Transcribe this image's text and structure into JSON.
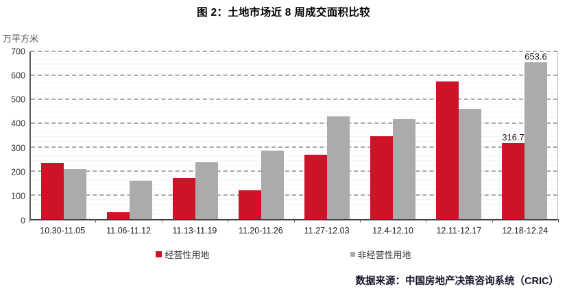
{
  "header": {
    "title": "图 2：土地市场近 8 周成交面积比较"
  },
  "footer": {
    "source_text": "数据来源：中国房地产决策咨询系统（CRIC）"
  },
  "colors": {
    "series_operating": "#ce1228",
    "series_non_operating": "#ababab",
    "gridline": "#ababab",
    "axis": "#595959"
  },
  "chart_data": {
    "type": "bar",
    "title": "图 2：土地市场近 8 周成交面积比较",
    "ylabel": "万平方米",
    "xlabel": "",
    "ylim": [
      0,
      700
    ],
    "y_ticks": [
      0,
      100,
      200,
      300,
      400,
      500,
      600,
      700
    ],
    "grid": "dashed horizontal major, faint minor every 20",
    "legend_position": "bottom",
    "categories": [
      "10.30-11.05",
      "11.06-11.12",
      "11.13-11.19",
      "11.20-11.26",
      "11.27-12.03",
      "12.4-12.10",
      "12.11-12.17",
      "12.18-12.24"
    ],
    "series": [
      {
        "name": "经营性用地",
        "color": "#ce1228",
        "values": [
          233,
          30,
          172,
          120,
          268,
          347,
          575,
          316.7
        ],
        "value_labels": [
          "",
          "",
          "",
          "",
          "",
          "",
          "",
          "316.7"
        ]
      },
      {
        "name": "非经营性用地",
        "color": "#ababab",
        "values": [
          210,
          160,
          238,
          287,
          429,
          418,
          461,
          653.6
        ],
        "value_labels": [
          "",
          "",
          "",
          "",
          "",
          "",
          "",
          "653.6"
        ]
      }
    ]
  }
}
